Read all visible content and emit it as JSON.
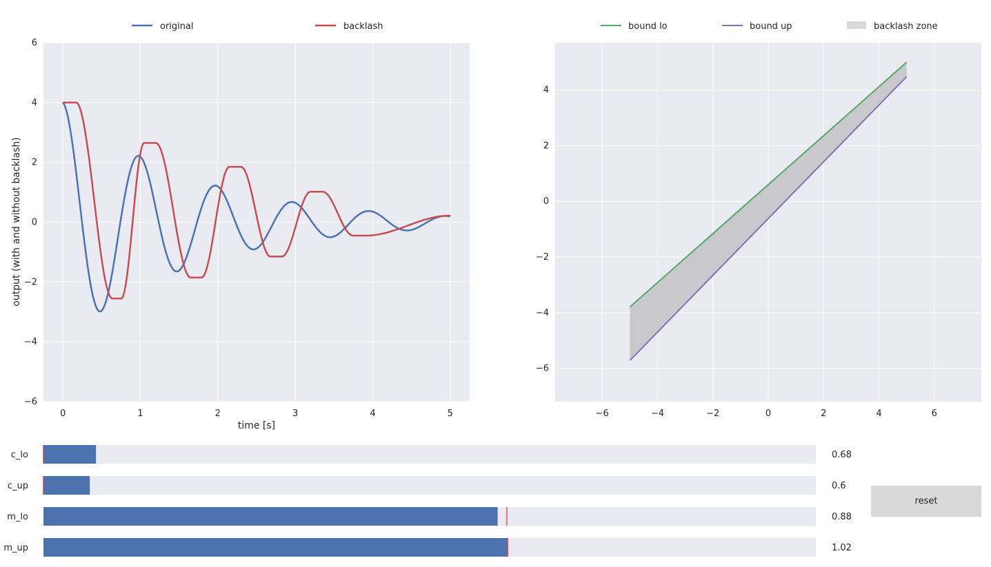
{
  "chart_data": [
    {
      "type": "line",
      "xlabel": "time [s]",
      "ylabel": "output (with and without backlash)",
      "xlim": [
        -0.25,
        5.25
      ],
      "ylim": [
        -6,
        6
      ],
      "xticks": [
        "0",
        "1",
        "2",
        "3",
        "4",
        "5"
      ],
      "yticks": [
        "−6",
        "−4",
        "−2",
        "0",
        "2",
        "4",
        "6"
      ],
      "grid": true,
      "legend_position": "top",
      "series": [
        {
          "name": "original",
          "color": "#4c72b0",
          "model": {
            "amplitude": 4,
            "decay": 0.6,
            "period": 0.99,
            "t_start": 0,
            "t_end": 5
          }
        },
        {
          "name": "backlash",
          "color": "#c44e52",
          "x": [
            0,
            0.02,
            0.64,
            1.05,
            1.65,
            2.15,
            2.68,
            3.2,
            3.75,
            5.0
          ],
          "y": [
            4,
            4,
            -2.55,
            2.65,
            -1.85,
            1.85,
            -1.15,
            1.02,
            -0.45,
            0.22
          ]
        }
      ]
    },
    {
      "type": "line",
      "xlim": [
        -7.7,
        7.7
      ],
      "ylim": [
        -7.2,
        5.7
      ],
      "xticks": [
        "−6",
        "−4",
        "−2",
        "0",
        "2",
        "4",
        "6"
      ],
      "yticks": [
        "−6",
        "−4",
        "−2",
        "0",
        "2",
        "4"
      ],
      "grid": true,
      "legend_position": "top",
      "series": [
        {
          "name": "bound lo",
          "color": "#55a868",
          "x": [
            -5,
            5
          ],
          "y": [
            -3.8,
            5.0
          ]
        },
        {
          "name": "bound up",
          "color": "#8172b2",
          "x": [
            -5,
            5
          ],
          "y": [
            -5.72,
            4.48
          ]
        }
      ],
      "fill": {
        "name": "backlash zone",
        "color": "#d9d9d9"
      }
    }
  ],
  "sliders": [
    {
      "label": "c_lo",
      "value_text": "0.68",
      "fraction": 0.068,
      "marker_fraction": 0.0
    },
    {
      "label": "c_up",
      "value_text": "0.6",
      "fraction": 0.06,
      "marker_fraction": 0.0
    },
    {
      "label": "m_lo",
      "value_text": "0.88",
      "fraction": 0.588,
      "marker_fraction": 0.6
    },
    {
      "label": "m_up",
      "value_text": "1.02",
      "fraction": 0.601,
      "marker_fraction": 0.601
    }
  ],
  "reset_label": "reset"
}
